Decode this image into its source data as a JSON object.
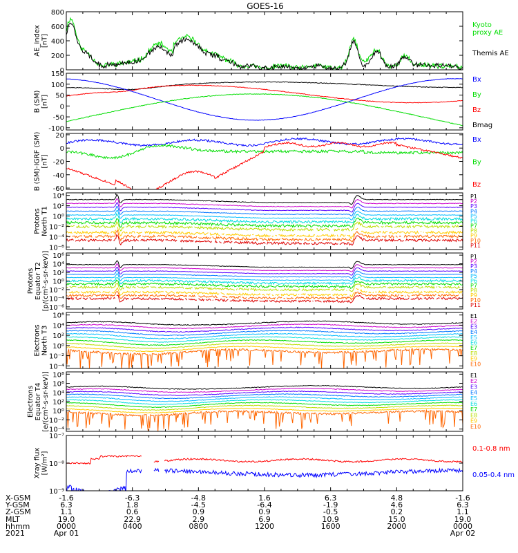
{
  "title": "GOES-16",
  "colors": {
    "black": "#000000",
    "red": "#ff0000",
    "green": "#00dd00",
    "blue": "#0000ff",
    "ch": [
      "#000000",
      "#cc00cc",
      "#5500ff",
      "#0077ff",
      "#00bbff",
      "#00dddd",
      "#00dd00",
      "#bbdd00",
      "#ffcc00",
      "#ff6600",
      "#dd0000"
    ]
  },
  "panels": [
    {
      "id": "ae",
      "ylabel": [
        "AE_index",
        "[nT]"
      ],
      "scale": "linear",
      "ylim": [
        0,
        800
      ],
      "ticks": [
        {
          "v": 0,
          "label": "0"
        },
        {
          "v": 200,
          "label": "200"
        },
        {
          "v": 400,
          "label": "400"
        },
        {
          "v": 600,
          "label": "600"
        },
        {
          "v": 800,
          "label": "800"
        }
      ],
      "legend": [
        {
          "label": "Kyoto",
          "color": "green"
        },
        {
          "label": "proxy AE",
          "color": "green"
        },
        {
          "label": "Themis AE",
          "color": "black"
        }
      ]
    },
    {
      "id": "bsm",
      "ylabel": [
        "B (SM)",
        "[nT]"
      ],
      "scale": "linear",
      "ylim": [
        -110,
        150
      ],
      "ticks": [
        {
          "v": -100,
          "label": "-100"
        },
        {
          "v": -50,
          "label": "-50"
        },
        {
          "v": 0,
          "label": "0"
        },
        {
          "v": 50,
          "label": "50"
        },
        {
          "v": 100,
          "label": "100"
        },
        {
          "v": 150,
          "label": "150"
        }
      ],
      "legend": [
        {
          "label": "Bx",
          "color": "blue"
        },
        {
          "label": "By",
          "color": "green"
        },
        {
          "label": "Bz",
          "color": "red"
        },
        {
          "label": "Bmag",
          "color": "black"
        }
      ]
    },
    {
      "id": "bigrf",
      "ylabel": [
        "B (SM)-IGRF (SM)",
        "[nT]"
      ],
      "scale": "linear",
      "ylim": [
        -62,
        22
      ],
      "ticks": [
        {
          "v": -60,
          "label": "-60"
        },
        {
          "v": -40,
          "label": "-40"
        },
        {
          "v": -20,
          "label": "-20"
        },
        {
          "v": 0,
          "label": "0"
        },
        {
          "v": 20,
          "label": "20"
        }
      ],
      "legend": [
        {
          "label": "Bx",
          "color": "blue"
        },
        {
          "label": "By",
          "color": "green"
        },
        {
          "label": "Bz",
          "color": "red"
        }
      ]
    },
    {
      "id": "pn",
      "ylabel": [
        "Protons",
        "North T1"
      ],
      "scale": "log",
      "ylim": [
        -6.5,
        4.5
      ],
      "ticks": [
        {
          "v": -6,
          "label": "10⁻⁶"
        },
        {
          "v": -4,
          "label": "10⁻⁴"
        },
        {
          "v": -2,
          "label": "10⁻²"
        },
        {
          "v": 0,
          "label": "10⁰"
        },
        {
          "v": 2,
          "label": "10²"
        },
        {
          "v": 4,
          "label": "10⁴"
        }
      ],
      "legend_channels": [
        "P1",
        "P2",
        "P3",
        "P4",
        "P5",
        "P6",
        "P7",
        "P8",
        "P9",
        "P10",
        "P11"
      ]
    },
    {
      "id": "pe",
      "ylabel": [
        "Protons",
        "Equator T2",
        "[p/(cm²-s-sr-keV)]"
      ],
      "scale": "log",
      "ylim": [
        -6.5,
        6.5
      ],
      "ticks": [
        {
          "v": -6,
          "label": "10⁻⁶"
        },
        {
          "v": -4,
          "label": "10⁻⁴"
        },
        {
          "v": -2,
          "label": "10⁻²"
        },
        {
          "v": 0,
          "label": "10⁰"
        },
        {
          "v": 2,
          "label": "10²"
        },
        {
          "v": 4,
          "label": "10⁴"
        },
        {
          "v": 6,
          "label": "10⁶"
        }
      ],
      "legend_channels": [
        "P1",
        "P2",
        "P3",
        "P4",
        "P5",
        "P6",
        "P7",
        "P8",
        "P9",
        "P10",
        "P11"
      ]
    },
    {
      "id": "en",
      "ylabel": [
        "Electrons",
        "North T3"
      ],
      "scale": "log",
      "ylim": [
        -4.5,
        6.5
      ],
      "ticks": [
        {
          "v": -4,
          "label": "10⁻⁴"
        },
        {
          "v": -2,
          "label": "10⁻²"
        },
        {
          "v": 0,
          "label": "10⁰"
        },
        {
          "v": 2,
          "label": "10²"
        },
        {
          "v": 4,
          "label": "10⁴"
        },
        {
          "v": 6,
          "label": "10⁶"
        }
      ],
      "legend_channels": [
        "E1",
        "E2",
        "E3",
        "E4",
        "E5",
        "E6",
        "E7",
        "E8",
        "E9",
        "E10"
      ]
    },
    {
      "id": "ee",
      "ylabel": [
        "Electrons",
        "Equator T4",
        "[e/(cm²-s-sr-keV)]"
      ],
      "scale": "log",
      "ylim": [
        -4.5,
        8.5
      ],
      "ticks": [
        {
          "v": -4,
          "label": "10⁻⁴"
        },
        {
          "v": -2,
          "label": "10⁻²"
        },
        {
          "v": 0,
          "label": "10⁰"
        },
        {
          "v": 2,
          "label": "10²"
        },
        {
          "v": 4,
          "label": "10⁴"
        },
        {
          "v": 6,
          "label": "10⁶"
        },
        {
          "v": 8,
          "label": "10⁸"
        }
      ],
      "legend_channels": [
        "E1",
        "E2",
        "E3",
        "E4",
        "E5",
        "E6",
        "E7",
        "E8",
        "E9",
        "E10"
      ]
    },
    {
      "id": "xray",
      "ylabel": [
        "Xray flux",
        "[W/m²]"
      ],
      "scale": "log",
      "ylim": [
        -9,
        -7
      ],
      "ticks": [
        {
          "v": -9,
          "label": "10⁻⁹"
        },
        {
          "v": -8,
          "label": "10⁻⁸"
        },
        {
          "v": -7,
          "label": "10⁻⁷"
        }
      ],
      "legend": [
        {
          "label": "0.1-0.8 nm",
          "color": "red"
        },
        {
          "label": "0.05-0.4 nm",
          "color": "blue"
        }
      ]
    }
  ],
  "x_axis": {
    "rows": [
      {
        "label": "X-GSM",
        "values": [
          "-1.6",
          "-6.3",
          "-4.8",
          "1.6",
          "6.3",
          "4.8",
          "-1.6"
        ]
      },
      {
        "label": "Y-GSM",
        "values": [
          "6.3",
          "1.8",
          "-4.5",
          "-6.4",
          "-1.9",
          "4.6",
          "6.3"
        ]
      },
      {
        "label": "Z-GSM",
        "values": [
          "1.1",
          "0.6",
          "0.9",
          "0.9",
          "-0.5",
          "0.2",
          "1.1"
        ]
      },
      {
        "label": "MLT",
        "values": [
          "19.0",
          "22.9",
          "2.9",
          "6.9",
          "10.9",
          "15.0",
          "19.0"
        ]
      },
      {
        "label": "hhmm",
        "values": [
          "0000",
          "0400",
          "0800",
          "1200",
          "1600",
          "2000",
          "0000"
        ]
      },
      {
        "label": "2021",
        "values": [
          "Apr 01",
          "",
          "",
          "",
          "",
          "",
          "Apr 02"
        ]
      }
    ]
  }
}
